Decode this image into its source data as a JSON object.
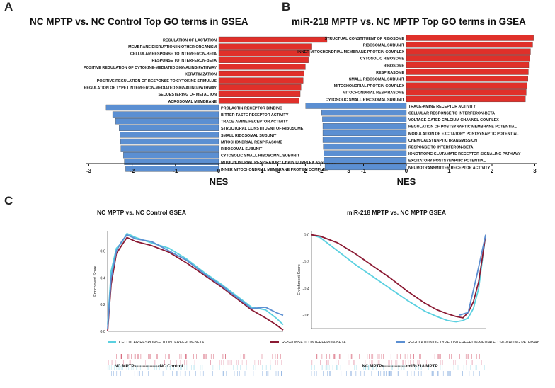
{
  "panels": {
    "a": {
      "label": "A",
      "title": "NC MPTP vs. NC Control Top GO terms in GSEA"
    },
    "b": {
      "label": "B",
      "title": "miR-218 MPTP vs. NC MPTP Top GO terms in GSEA"
    },
    "c": {
      "label": "C"
    }
  },
  "colors": {
    "up": "#e0302a",
    "down": "#5b8fd2",
    "highlight": "#f0a020",
    "cyan": "#5ad0e0",
    "darkred": "#8b1a33",
    "steel": "#5b8fd2"
  },
  "chart_data": [
    {
      "type": "bar",
      "orientation": "horizontal",
      "title": "NC MPTP vs. NC Control Top GO terms in GSEA",
      "xlabel": "NES",
      "xlim": [
        -3,
        3
      ],
      "xticks": [
        "-3",
        "-2",
        "-1",
        "0",
        "1",
        "2",
        "3"
      ],
      "bars": [
        {
          "term": "REGULATION OF LACTATION",
          "nes": 2.5,
          "highlight": false
        },
        {
          "term": "MEMBRANE DISRUPTION IN OTHER ORGANISM",
          "nes": 2.15,
          "highlight": false
        },
        {
          "term": "CELLULAR RESPONSE TO INTERFERON-BETA",
          "nes": 2.1,
          "highlight": true
        },
        {
          "term": "RESPONSE TO INTERFERON-BETA",
          "nes": 2.07,
          "highlight": true
        },
        {
          "term": "POSITIVE REGULATION OF CYTOKINE-MEDIATED SIGNALING PATHWAY",
          "nes": 2.0,
          "highlight": false
        },
        {
          "term": "KERATINIZATION",
          "nes": 1.97,
          "highlight": false
        },
        {
          "term": "POSITIVE REGULATION OF RESPONSE TO CYTOKINE STIMULUS",
          "nes": 1.95,
          "highlight": false
        },
        {
          "term": "REGULATION OF TYPE I INTERFERON-MEDIATED SIGNALING PATHWAY",
          "nes": 1.9,
          "highlight": true
        },
        {
          "term": "SEQUESTERING OF METAL ION",
          "nes": 1.88,
          "highlight": false
        },
        {
          "term": "ACROSOMAL MEMBRANE",
          "nes": 1.85,
          "highlight": false
        },
        {
          "term": "PROLACTIN RECEPTOR BINDING",
          "nes": -2.6,
          "highlight": false
        },
        {
          "term": "BITTER TASTE RECEPTOR ACTIVITY",
          "nes": -2.45,
          "highlight": false
        },
        {
          "term": "TRACE-AMINE RECEPTOR ACTIVITY",
          "nes": -2.38,
          "highlight": false
        },
        {
          "term": "STRUCTURAL CONSTITUENT OF RIBOSOME",
          "nes": -2.3,
          "highlight": false
        },
        {
          "term": "SMALL RIBOSOMAL SUBUNIT",
          "nes": -2.28,
          "highlight": false
        },
        {
          "term": "MITOCHONDRIAL RESPIRASOME",
          "nes": -2.27,
          "highlight": false
        },
        {
          "term": "RIBOSOMAL SUBUNIT",
          "nes": -2.26,
          "highlight": false
        },
        {
          "term": "CYTOSOLIC SMALL RIBOSOMAL SUBUNIT",
          "nes": -2.2,
          "highlight": false
        },
        {
          "term": "MITOCHONDRIAL RESPIRATORY CHAIN COMPLEX ASSEMBLY",
          "nes": -2.18,
          "highlight": false
        },
        {
          "term": "INNER MITOCHONDRIAL MEMBRANE PROTEIN COMPLEX",
          "nes": -2.15,
          "highlight": false
        }
      ]
    },
    {
      "type": "bar",
      "orientation": "horizontal",
      "title": "miR-218 MPTP vs. NC MPTP Top GO terms in GSEA",
      "xlabel": "NES",
      "xlim": [
        -3,
        3
      ],
      "xticks": [
        "-3",
        "-2",
        "-1",
        "0",
        "1",
        "2",
        "3"
      ],
      "bars": [
        {
          "term": "STRUCTUAL CONSTITUENT OF RIBOSOME",
          "nes": 2.97,
          "highlight": false
        },
        {
          "term": "RIBOSOMAL SUBUNIT",
          "nes": 2.95,
          "highlight": false
        },
        {
          "term": "INNER MITOCHONDRIAL MEMBRANE PROTEIN COMPLEX",
          "nes": 2.9,
          "highlight": false
        },
        {
          "term": "CYTOSOLIC RIBOSOME",
          "nes": 2.88,
          "highlight": false
        },
        {
          "term": "RIBOSOME",
          "nes": 2.86,
          "highlight": false
        },
        {
          "term": "RESPIRASOME",
          "nes": 2.85,
          "highlight": false
        },
        {
          "term": "SMALL RIBOSOMAL SUBUNIT",
          "nes": 2.84,
          "highlight": false
        },
        {
          "term": "MITOCHONDRIAL PROTEIN COMPLEX",
          "nes": 2.82,
          "highlight": false
        },
        {
          "term": "MITOCHONDRIAL RESPIRASOME",
          "nes": 2.8,
          "highlight": false
        },
        {
          "term": "CYTOSOLIC SMALL RIBOSOMAL SUBUNIT",
          "nes": 2.78,
          "highlight": false
        },
        {
          "term": "TRACE-AMINE RECEPTOR ACTIVITY",
          "nes": -2.35,
          "highlight": false
        },
        {
          "term": "CELLULAR RESPONSE TO INTERFERON-BETA",
          "nes": -1.98,
          "highlight": true
        },
        {
          "term": "VOLTAGE-GATED CALCIUM CHANNEL COMPLEX",
          "nes": -1.96,
          "highlight": false
        },
        {
          "term": "REGULATION OF POSTSYNAPTIC MEMBRANE POTENTIAL",
          "nes": -1.95,
          "highlight": false
        },
        {
          "term": "MODULATION OF EXCITATORY POSTSYNAPTIC POTENTIAL",
          "nes": -1.95,
          "highlight": false
        },
        {
          "term": "CHEMICALSYNAPTICTRANSMISSION",
          "nes": -1.95,
          "highlight": false
        },
        {
          "term": "RESPONSE TO INTERFERON-BETA",
          "nes": -1.94,
          "highlight": true
        },
        {
          "term": "IONOTROPIC GLUTAMATE RECEPTOR SIGNALING PATHWAY",
          "nes": -1.93,
          "highlight": false
        },
        {
          "term": "EXCITATORY POSTSYNAPTIC POTENTIAL",
          "nes": -1.92,
          "highlight": false
        },
        {
          "term": "NEUROTRANSMITTER RECEPTOR ACTIVITY",
          "nes": -1.9,
          "highlight": false
        }
      ]
    },
    {
      "type": "line",
      "title": "NC MPTP vs. NC Control  GSEA",
      "ylabel": "Enrichment Score",
      "ylim": [
        0,
        0.75
      ],
      "yticks": [
        "0.0",
        "0.2",
        "0.4",
        "0.6"
      ],
      "bottom_label": "NC MPTP<-------------->NC Control",
      "series": [
        {
          "name": "CELLULAR RESPONSE TO INTERFERON-BETA",
          "color": "#5ad0e0",
          "x": [
            0,
            0.02,
            0.05,
            0.08,
            0.11,
            0.16,
            0.25,
            0.35,
            0.45,
            0.55,
            0.65,
            0.75,
            0.82,
            0.9,
            0.96,
            1.0
          ],
          "y": [
            0.05,
            0.45,
            0.62,
            0.66,
            0.73,
            0.7,
            0.66,
            0.62,
            0.54,
            0.44,
            0.35,
            0.25,
            0.18,
            0.16,
            0.1,
            0.05
          ]
        },
        {
          "name": "RESPONSE TO INTERFERON-BETA",
          "color": "#8b1a33",
          "x": [
            0,
            0.02,
            0.05,
            0.08,
            0.11,
            0.16,
            0.25,
            0.35,
            0.45,
            0.55,
            0.65,
            0.75,
            0.82,
            0.9,
            0.96,
            1.0
          ],
          "y": [
            0.0,
            0.35,
            0.58,
            0.64,
            0.7,
            0.67,
            0.64,
            0.59,
            0.51,
            0.42,
            0.33,
            0.23,
            0.16,
            0.1,
            0.05,
            0.01
          ]
        },
        {
          "name": "REGULATION OF TYPE I INTERFERON-MEDIATED SIGNALING PATHWAY",
          "color": "#5b8fd2",
          "x": [
            0,
            0.02,
            0.05,
            0.08,
            0.11,
            0.16,
            0.25,
            0.35,
            0.45,
            0.55,
            0.65,
            0.75,
            0.82,
            0.9,
            0.96,
            1.0
          ],
          "y": [
            0.02,
            0.4,
            0.6,
            0.67,
            0.72,
            0.69,
            0.67,
            0.6,
            0.53,
            0.43,
            0.34,
            0.24,
            0.17,
            0.18,
            0.14,
            0.12
          ]
        }
      ]
    },
    {
      "type": "line",
      "title": "miR-218 MPTP vs. NC MPTP  GSEA",
      "ylabel": "Enrichment Score",
      "ylim": [
        -0.7,
        0.03
      ],
      "yticks": [
        "0.0",
        "-0.2",
        "-0.4",
        "-0.6"
      ],
      "bottom_label": "NC MPTP<-------------->miR-218 MPTP",
      "series": [
        {
          "name": "CELLULAR RESPONSE TO INTERFERON-BETA",
          "color": "#5ad0e0",
          "x": [
            0,
            0.05,
            0.15,
            0.25,
            0.35,
            0.45,
            0.55,
            0.65,
            0.72,
            0.78,
            0.83,
            0.87,
            0.9,
            0.93,
            0.96,
            0.98,
            1.0
          ],
          "y": [
            0.0,
            -0.02,
            -0.12,
            -0.22,
            -0.31,
            -0.4,
            -0.49,
            -0.57,
            -0.61,
            -0.64,
            -0.65,
            -0.64,
            -0.62,
            -0.55,
            -0.4,
            -0.2,
            0.0
          ]
        },
        {
          "name": "RESPONSE TO INTERFERON-BETA",
          "color": "#8b1a33",
          "x": [
            0,
            0.05,
            0.15,
            0.25,
            0.35,
            0.45,
            0.55,
            0.65,
            0.72,
            0.78,
            0.83,
            0.87,
            0.9,
            0.93,
            0.96,
            0.98,
            1.0
          ],
          "y": [
            0.0,
            -0.01,
            -0.06,
            -0.14,
            -0.23,
            -0.32,
            -0.42,
            -0.51,
            -0.56,
            -0.59,
            -0.61,
            -0.62,
            -0.58,
            -0.5,
            -0.35,
            -0.18,
            0.0
          ]
        },
        {
          "name": "REGULATION OF TYPE I INTERFERON-MEDIATED SIGNALING PATHWAY",
          "color": "#5b8fd2",
          "x": [
            0.85,
            0.9,
            0.95,
            1.0
          ],
          "y": [
            -0.6,
            -0.58,
            -0.3,
            0.0
          ]
        }
      ]
    }
  ],
  "legend": [
    {
      "label": "CELLULAR RESPONSE TO INTERFERON-BETA",
      "color": "#5ad0e0"
    },
    {
      "label": "RESPONSE TO INTERFERON-BETA",
      "color": "#8b1a33"
    },
    {
      "label": "REGULATION OF TYPE I INTERFERON-MEDIATED SIGNALING PATHWAY",
      "color": "#5b8fd2"
    }
  ]
}
